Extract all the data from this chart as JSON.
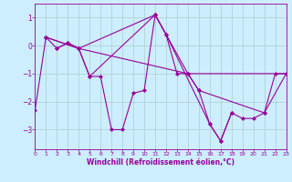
{
  "xlabel": "Windchill (Refroidissement éolien,°C)",
  "bg_color": "#cceeff",
  "line_color": "#990099",
  "grid_color": "#aacccc",
  "x_ticks": [
    0,
    1,
    2,
    3,
    4,
    5,
    6,
    7,
    8,
    9,
    10,
    11,
    12,
    13,
    14,
    15,
    16,
    17,
    18,
    19,
    20,
    21,
    22,
    23
  ],
  "y_ticks": [
    1,
    0,
    -1,
    -2,
    -3
  ],
  "ylim": [
    -3.7,
    1.5
  ],
  "xlim": [
    0,
    23
  ],
  "series": [
    {
      "x": [
        0,
        1,
        2,
        3,
        4,
        5,
        6,
        7,
        8,
        9,
        10,
        11,
        12,
        13,
        14,
        15,
        16,
        17,
        18,
        19,
        20,
        21,
        22,
        23
      ],
      "y": [
        -2.3,
        0.3,
        -0.1,
        0.1,
        -0.1,
        -1.1,
        -1.1,
        -3.0,
        -3.0,
        -1.7,
        -1.6,
        1.1,
        0.4,
        -1.0,
        -1.0,
        -1.6,
        -2.8,
        -3.4,
        -2.4,
        -2.6,
        -2.6,
        -2.4,
        -1.0,
        -1.0
      ]
    },
    {
      "x": [
        1,
        4,
        5,
        11,
        14,
        15,
        21,
        23
      ],
      "y": [
        0.3,
        -0.1,
        -1.1,
        1.1,
        -1.0,
        -1.6,
        -2.4,
        -1.0
      ]
    },
    {
      "x": [
        1,
        4,
        14,
        23
      ],
      "y": [
        0.3,
        -0.1,
        -1.0,
        -1.0
      ]
    },
    {
      "x": [
        2,
        3,
        4,
        11,
        12,
        16,
        17,
        18
      ],
      "y": [
        -0.1,
        0.1,
        -0.1,
        1.1,
        0.4,
        -2.8,
        -3.4,
        -2.4
      ]
    }
  ]
}
